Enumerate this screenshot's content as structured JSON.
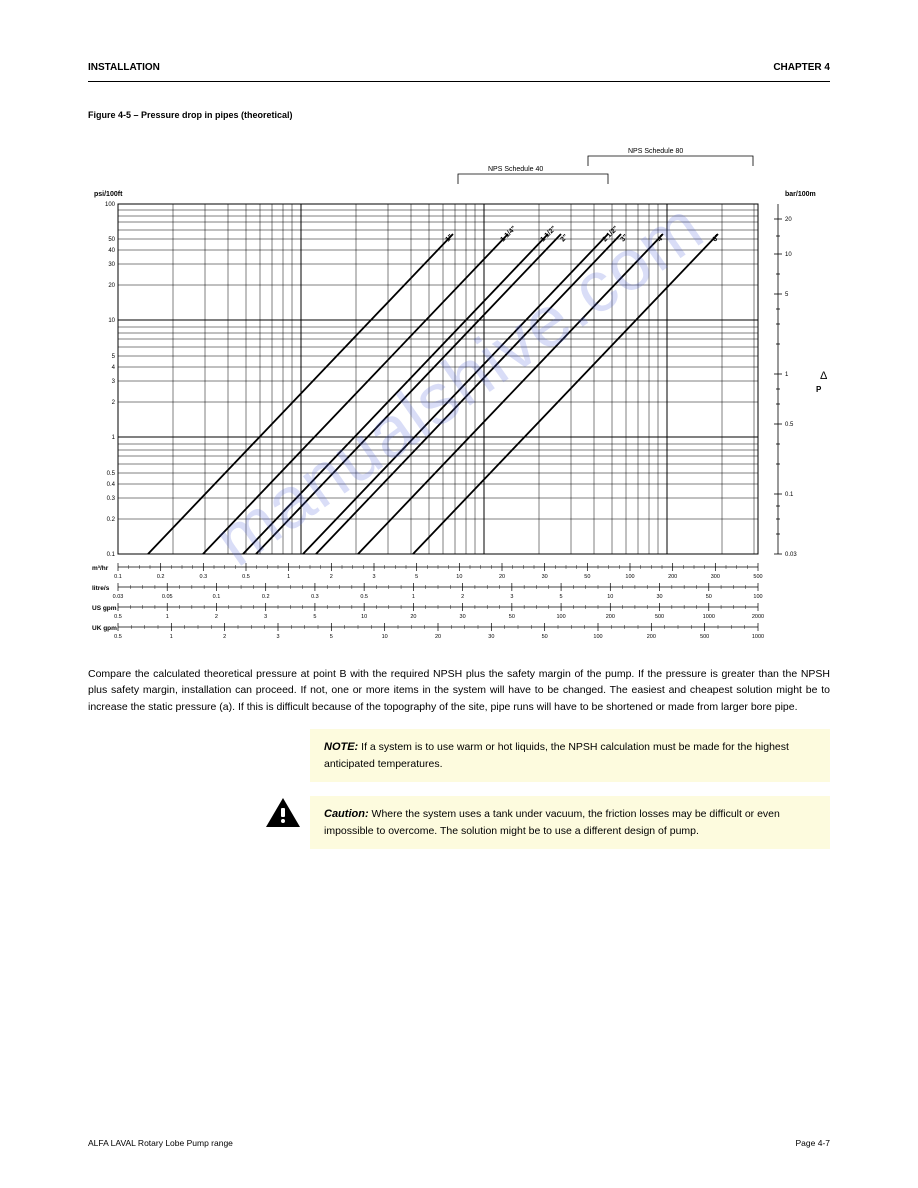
{
  "header": {
    "left": "INSTALLATION",
    "right": "CHAPTER 4"
  },
  "figure": {
    "title": "Figure 4-5 – Pressure drop in pipes (theoretical)",
    "type": "log-log-nomograph",
    "background_color": "#ffffff",
    "grid_color": "#000000",
    "line_color": "#000000",
    "line_width": 1.6,
    "diag_labels": [
      "1\"",
      "1 1/4\"",
      "1 1/2\"",
      "2\"",
      "2 1/2\"",
      "3\"",
      "4\"",
      "6\""
    ],
    "brackets": [
      {
        "label": "NPS Schedule 40"
      },
      {
        "label": "NPS Schedule 80"
      }
    ],
    "y_axis": {
      "label_top": "P",
      "label_unit": "psi/100ft",
      "label_right": "bar/100m",
      "ticks_left": [
        "0.1",
        "0.2",
        "0.3",
        "0.4",
        "0.5",
        "1",
        "2",
        "3",
        "4",
        "5",
        "10",
        "20",
        "30",
        "40",
        "50",
        "100"
      ],
      "ticks_right": [
        "0.03",
        "0.1",
        "0.5",
        "1",
        "5",
        "10",
        "20"
      ]
    },
    "x_rows": [
      {
        "label": "m³/hr",
        "ticks": [
          "0.1",
          "0.2",
          "0.3",
          "0.5",
          "1",
          "2",
          "3",
          "5",
          "10",
          "20",
          "30",
          "50",
          "100",
          "200",
          "300",
          "500"
        ]
      },
      {
        "label": "litre/s",
        "ticks": [
          "0.03",
          "0.05",
          "0.1",
          "0.2",
          "0.3",
          "0.5",
          "1",
          "2",
          "3",
          "5",
          "10",
          "30",
          "50",
          "100"
        ]
      },
      {
        "label": "US gpm",
        "ticks": [
          "0.5",
          "1",
          "2",
          "3",
          "5",
          "10",
          "20",
          "30",
          "50",
          "100",
          "200",
          "500",
          "1000",
          "2000"
        ]
      },
      {
        "label": "UK gpm",
        "ticks": [
          "0.5",
          "1",
          "2",
          "3",
          "5",
          "10",
          "20",
          "30",
          "50",
          "100",
          "200",
          "500",
          "1000"
        ]
      }
    ]
  },
  "body": {
    "p1": "Compare the calculated theoretical pressure at point B with the required NPSH plus the safety margin of the pump. If the pressure is greater than the NPSH plus safety margin, installation can proceed. If not, one or more items in the system will have to be changed. The easiest and cheapest solution might be to increase the static pressure (a). If this is difficult because of the topography of the site, pipe runs will have to be shortened or made from larger bore pipe."
  },
  "note": {
    "label": "NOTE:",
    "text": "If a system is to use warm or hot liquids, the NPSH calculation must be made for the highest anticipated temperatures."
  },
  "caution": {
    "label": "Caution:",
    "text": "Where the system uses a tank under vacuum, the friction losses may be difficult or even impossible to overcome. The solution might be to use a different design of pump."
  },
  "footer": {
    "left": "ALFA LAVAL Rotary Lobe Pump range",
    "right": "Page 4-7"
  },
  "watermark": "manualshive.com"
}
